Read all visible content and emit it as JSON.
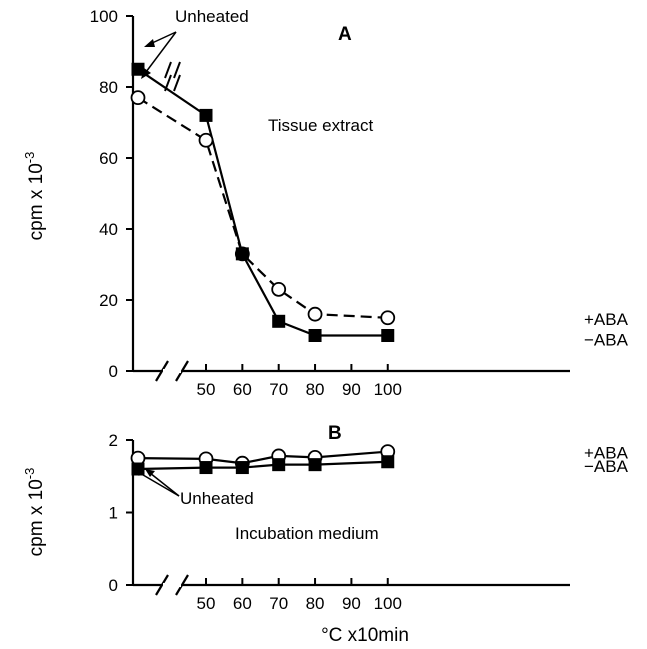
{
  "chart_data": [
    {
      "panel": "A",
      "type": "line",
      "ylabel": "cpm x 10",
      "ylabel_exp": "-3",
      "ylim": [
        0,
        100
      ],
      "yticks": [
        0,
        20,
        40,
        60,
        80,
        100
      ],
      "xticks": [
        50,
        60,
        70,
        80,
        90,
        100
      ],
      "annotations": {
        "unheated": "Unheated",
        "panel_text": "Tissue extract"
      },
      "series": [
        {
          "name": "+ABA",
          "marker": "open-circle",
          "dash": true,
          "unheated": 77,
          "x": [
            50,
            60,
            70,
            80,
            100
          ],
          "values": [
            65,
            33,
            23,
            16,
            15
          ]
        },
        {
          "name": "−ABA",
          "marker": "filled-square",
          "dash": false,
          "unheated": 85,
          "x": [
            50,
            60,
            70,
            80,
            100
          ],
          "values": [
            72,
            33,
            14,
            10,
            10
          ]
        }
      ]
    },
    {
      "panel": "B",
      "type": "line",
      "ylabel": "cpm x 10",
      "ylabel_exp": "-3",
      "ylim": [
        0,
        2
      ],
      "yticks": [
        0,
        1,
        2
      ],
      "xticks": [
        50,
        60,
        70,
        80,
        90,
        100
      ],
      "xlabel": "°C x10min",
      "annotations": {
        "unheated": "Unheated",
        "panel_text": "Incubation medium"
      },
      "series": [
        {
          "name": "+ABA",
          "marker": "open-circle",
          "dash": false,
          "unheated": 1.75,
          "x": [
            50,
            60,
            70,
            80,
            100
          ],
          "values": [
            1.74,
            1.68,
            1.78,
            1.76,
            1.84
          ]
        },
        {
          "name": "−ABA",
          "marker": "filled-square",
          "dash": false,
          "unheated": 1.6,
          "x": [
            50,
            60,
            70,
            80,
            100
          ],
          "values": [
            1.62,
            1.62,
            1.66,
            1.66,
            1.7
          ]
        }
      ]
    }
  ]
}
